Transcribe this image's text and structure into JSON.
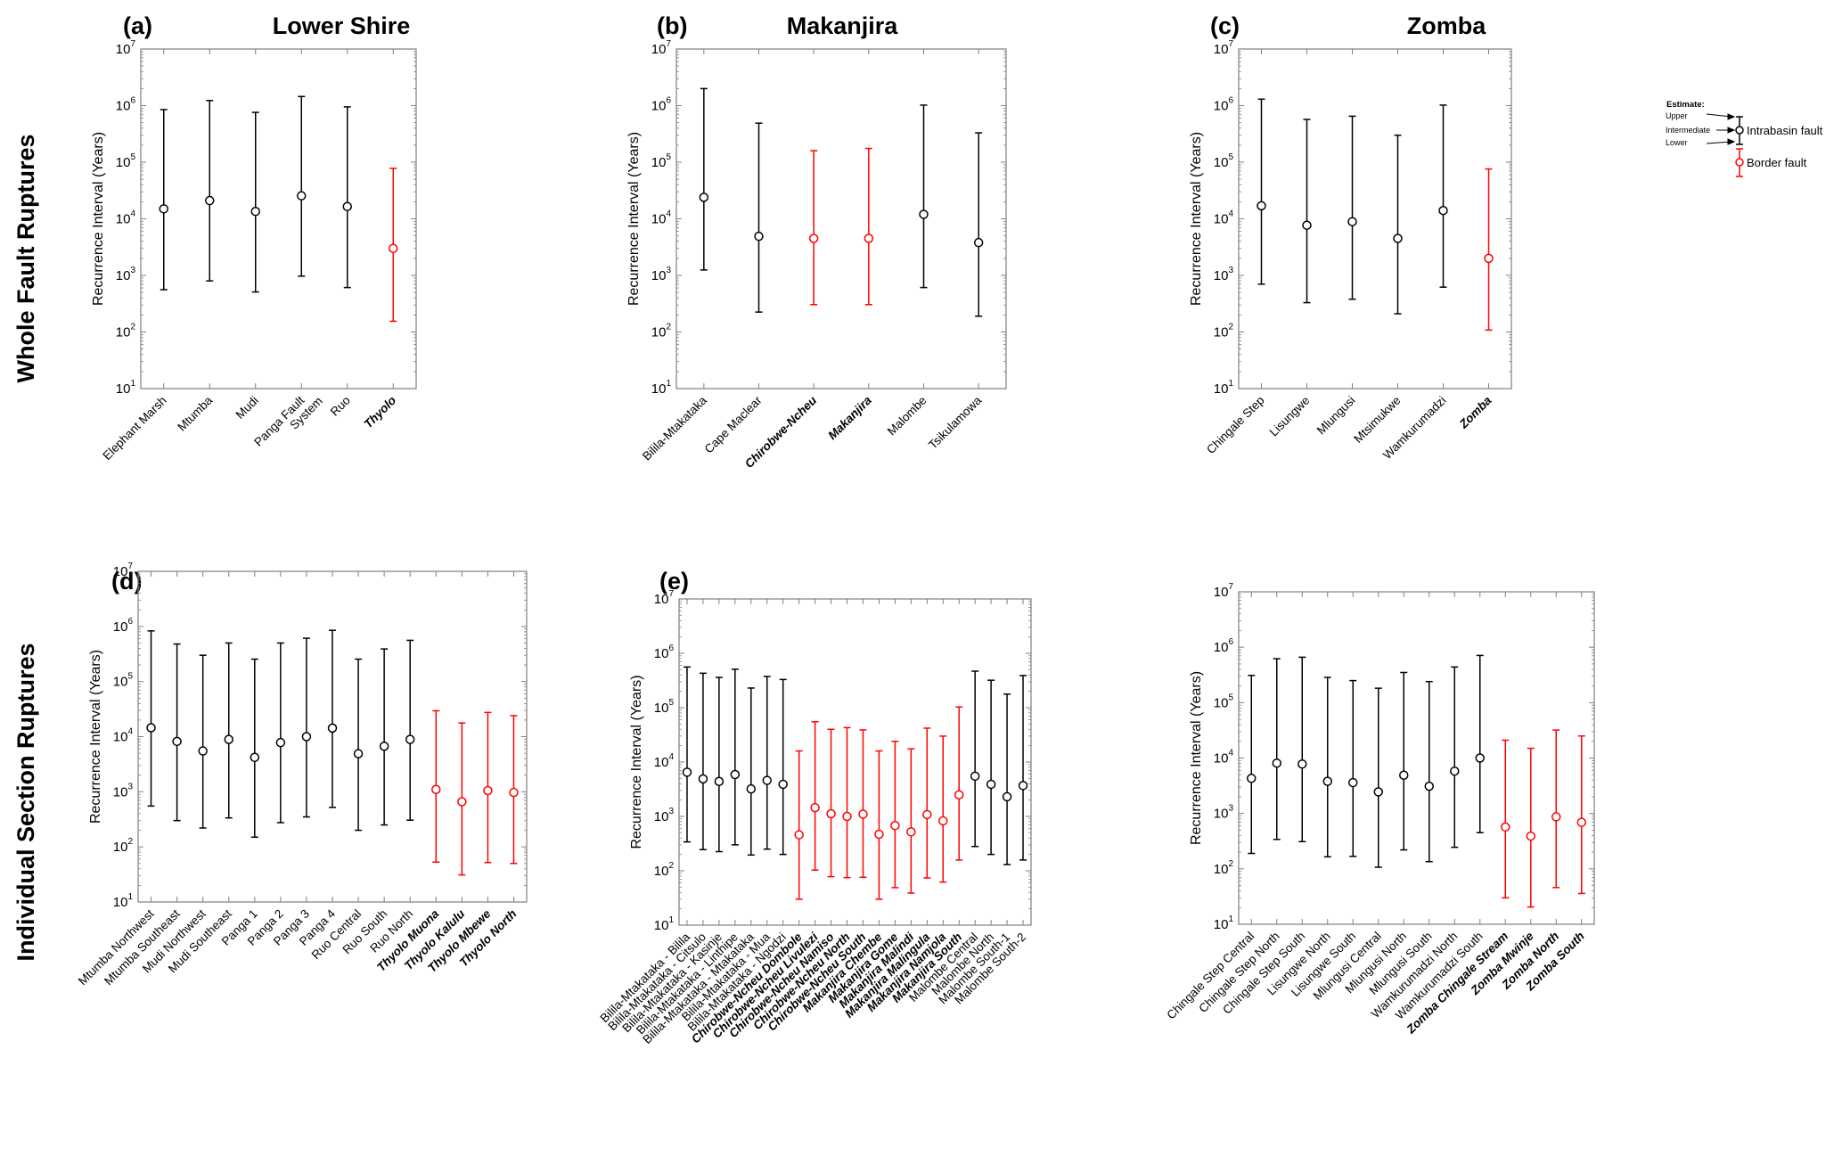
{
  "figure": {
    "row_labels": [
      "Whole Fault Ruptures",
      "Individual Section Ruptures"
    ],
    "y_axis_label": "Recurrence Interval (Years)",
    "colors": {
      "intrabasin": "#000000",
      "border": "#ff0000",
      "axis": "#7f7f7f"
    },
    "legend": {
      "title": "Estimate:",
      "upper": "Upper",
      "intermediate": "Intermediate",
      "lower": "Lower",
      "intrabasin": "Intrabasin fault",
      "border": "Border fault"
    }
  },
  "chart_data": [
    {
      "id": "a",
      "type": "errorbar",
      "letter": "(a)",
      "title": "Lower Shire",
      "xlabel": "",
      "ylabel": "Recurrence Interval (Years)",
      "yscale": "log",
      "ylim": [
        10,
        10000000
      ],
      "yticks": [
        1,
        2,
        3,
        4,
        5,
        6,
        7
      ],
      "categories": [
        "Elephant Marsh",
        "Mtumba",
        "Mudi",
        "Panga Fault\nSystem",
        "Ruo",
        "Thyolo"
      ],
      "border": [
        false,
        false,
        false,
        false,
        false,
        true
      ],
      "intermediate": [
        15000,
        21000,
        13500,
        25500,
        16500,
        3000
      ],
      "lower": [
        560,
        800,
        510,
        970,
        610,
        155
      ],
      "upper": [
        850000,
        1230000,
        760000,
        1450000,
        950000,
        78000
      ]
    },
    {
      "id": "b",
      "type": "errorbar",
      "letter": "(b)",
      "title": "Makanjira",
      "xlabel": "",
      "ylabel": "Recurrence Interval (Years)",
      "yscale": "log",
      "ylim": [
        10,
        10000000
      ],
      "yticks": [
        1,
        2,
        3,
        4,
        5,
        6,
        7
      ],
      "categories": [
        "Bilila-Mtakataka",
        "Cape Maclear",
        "Chirobwe-Ncheu",
        "Makanjira",
        "Malombe",
        "Tsikulamowa"
      ],
      "border": [
        false,
        false,
        true,
        true,
        false,
        false
      ],
      "intermediate": [
        24000,
        4900,
        4500,
        4500,
        12000,
        3800
      ],
      "lower": [
        1250,
        225,
        305,
        305,
        610,
        190
      ],
      "upper": [
        2000000,
        490000,
        160000,
        175000,
        1020000,
        330000
      ]
    },
    {
      "id": "c",
      "type": "errorbar",
      "letter": "(c)",
      "title": "Zomba",
      "xlabel": "",
      "ylabel": "Recurrence Interval (Years)",
      "yscale": "log",
      "ylim": [
        10,
        10000000
      ],
      "yticks": [
        1,
        2,
        3,
        4,
        5,
        6,
        7
      ],
      "categories": [
        "Chingale Step",
        "Lisungwe",
        "Mlungusi",
        "Mtsimukwe",
        "Wamkurumadzi",
        "Zomba"
      ],
      "border": [
        false,
        false,
        false,
        false,
        false,
        true
      ],
      "intermediate": [
        17000,
        7700,
        8900,
        4500,
        14000,
        2000
      ],
      "lower": [
        700,
        330,
        380,
        210,
        620,
        108
      ],
      "upper": [
        1300000,
        570000,
        650000,
        300000,
        1020000,
        76000
      ]
    },
    {
      "id": "d",
      "type": "errorbar",
      "letter": "(d)",
      "title": "",
      "xlabel": "",
      "ylabel": "Recurrence Interval (Years)",
      "yscale": "log",
      "ylim": [
        10,
        10000000
      ],
      "yticks": [
        1,
        2,
        3,
        4,
        5,
        6,
        7
      ],
      "categories": [
        "Mtumba Northwest",
        "Mtumba Southeast",
        "Mudi Northwest",
        "Mudi Southeast",
        "Panga 1",
        "Panga 2",
        "Panga 3",
        "Panga 4",
        "Ruo Central",
        "Ruo South",
        "Ruo North",
        "Thyolo Muona",
        "Thyolo Kalulu",
        "Thyolo Mbewe",
        "Thyolo North"
      ],
      "border": [
        false,
        false,
        false,
        false,
        false,
        false,
        false,
        false,
        false,
        false,
        false,
        true,
        true,
        true,
        true
      ],
      "intermediate": [
        14500,
        8200,
        5500,
        8900,
        4200,
        7800,
        10000,
        14300,
        4900,
        6700,
        8900,
        1100,
        660,
        1050,
        970
      ],
      "lower": [
        550,
        300,
        220,
        335,
        150,
        275,
        350,
        520,
        200,
        250,
        305,
        53,
        31,
        52,
        50
      ],
      "upper": [
        830000,
        480000,
        300000,
        500000,
        255000,
        500000,
        610000,
        850000,
        255000,
        390000,
        560000,
        29500,
        17700,
        27500,
        24000
      ]
    },
    {
      "id": "e",
      "type": "errorbar",
      "letter": "(e)",
      "title": "",
      "xlabel": "",
      "ylabel": "Recurrence Interval (Years)",
      "yscale": "log",
      "ylim": [
        10,
        10000000
      ],
      "yticks": [
        1,
        2,
        3,
        4,
        5,
        6,
        7
      ],
      "categories": [
        "Bilila-Mtakataka - Bilila",
        "Bilila-Mtakataka - Citsulo",
        "Bilila-Mtakataka - Kasinje",
        "Bilila-Mtakataka - Linthipe",
        "Bilila-Mtakataka - Mtakataka",
        "Bilila-Mtakataka - Mua",
        "Bilila-Mtakataka - Ngodzi",
        "Chirobwe-Ncheu Dombole",
        "Chirobwe-Ncheu Livulezi",
        "Chirobwe-Ncheu Namiso",
        "Chirobwe-Ncheu North",
        "Chirobwe-Ncheu South",
        "Makanjira Chembe",
        "Makanjira Gome",
        "Makanjira Malindi",
        "Makanjira Malingula",
        "Makanjira Namjola",
        "Makanjira South",
        "Malombe Central",
        "Malombe North",
        "Malombe South-1",
        "Malombe South-2"
      ],
      "border": [
        false,
        false,
        false,
        false,
        false,
        false,
        false,
        true,
        true,
        true,
        true,
        true,
        true,
        true,
        true,
        true,
        true,
        true,
        false,
        false,
        false,
        false
      ],
      "intermediate": [
        6500,
        4900,
        4400,
        5900,
        3200,
        4600,
        3900,
        460,
        1450,
        1120,
        1000,
        1100,
        470,
        680,
        520,
        1080,
        830,
        2500,
        5500,
        3900,
        2300,
        3700
      ],
      "lower": [
        340,
        245,
        225,
        300,
        195,
        250,
        200,
        30,
        103,
        78,
        75,
        76,
        30,
        49,
        39,
        74,
        62,
        158,
        280,
        200,
        130,
        158
      ],
      "upper": [
        560000,
        430000,
        360000,
        510000,
        230000,
        375000,
        330000,
        16000,
        55000,
        40000,
        43000,
        39000,
        16000,
        24000,
        17500,
        42000,
        30000,
        103000,
        470000,
        320000,
        178000,
        390000
      ]
    },
    {
      "id": "f",
      "type": "errorbar",
      "letter": "",
      "title": "",
      "xlabel": "",
      "ylabel": "Recurrence Interval (Years)",
      "yscale": "log",
      "ylim": [
        10,
        10000000
      ],
      "yticks": [
        1,
        2,
        3,
        4,
        5,
        6,
        7
      ],
      "categories": [
        "Chingale Step Central",
        "Chingale Step North",
        "Chingale Step South",
        "Lisungwe North",
        "Lisungwe South",
        "Mlungusi Central",
        "Mlungusi North",
        "Mlungusi South",
        "Wamkurumadzi North",
        "Wamkurumadzi South",
        "Zomba Chingale Stream",
        "Zomba Mwinje",
        "Zomba North",
        "Zomba South"
      ],
      "border": [
        false,
        false,
        false,
        false,
        false,
        false,
        false,
        false,
        false,
        false,
        true,
        true,
        true,
        true
      ],
      "intermediate": [
        4300,
        8100,
        7800,
        3800,
        3600,
        2450,
        4900,
        3100,
        5800,
        10000,
        570,
        390,
        870,
        690
      ],
      "lower": [
        190,
        340,
        310,
        165,
        168,
        107,
        220,
        135,
        245,
        450,
        30,
        20.5,
        46,
        36
      ],
      "upper": [
        310000,
        620000,
        660000,
        285000,
        250000,
        182000,
        350000,
        240000,
        440000,
        710000,
        21000,
        15000,
        32000,
        25000
      ]
    }
  ]
}
